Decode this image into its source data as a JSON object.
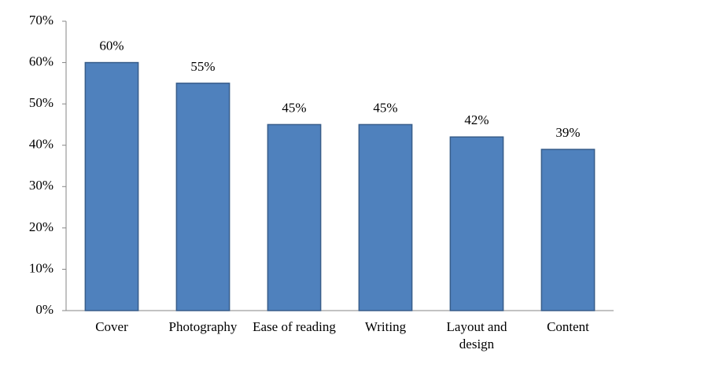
{
  "chart_data": {
    "type": "bar",
    "categories": [
      "Cover",
      "Photography",
      "Ease of reading",
      "Writing",
      "Layout and design",
      "Content"
    ],
    "values": [
      60,
      55,
      45,
      45,
      42,
      39
    ],
    "value_labels": [
      "60%",
      "55%",
      "45%",
      "45%",
      "42%",
      "39%"
    ],
    "color": "#4f81bd",
    "edgecolor": "#385d8a",
    "ylim": [
      0,
      70
    ],
    "yticks": [
      {
        "value": 0,
        "label": "0%"
      },
      {
        "value": 10,
        "label": "10%"
      },
      {
        "value": 20,
        "label": "20%"
      },
      {
        "value": 30,
        "label": "30%"
      },
      {
        "value": 40,
        "label": "40%"
      },
      {
        "value": 50,
        "label": "50%"
      },
      {
        "value": 60,
        "label": "60%"
      },
      {
        "value": 70,
        "label": "70%"
      }
    ],
    "grid": false
  }
}
